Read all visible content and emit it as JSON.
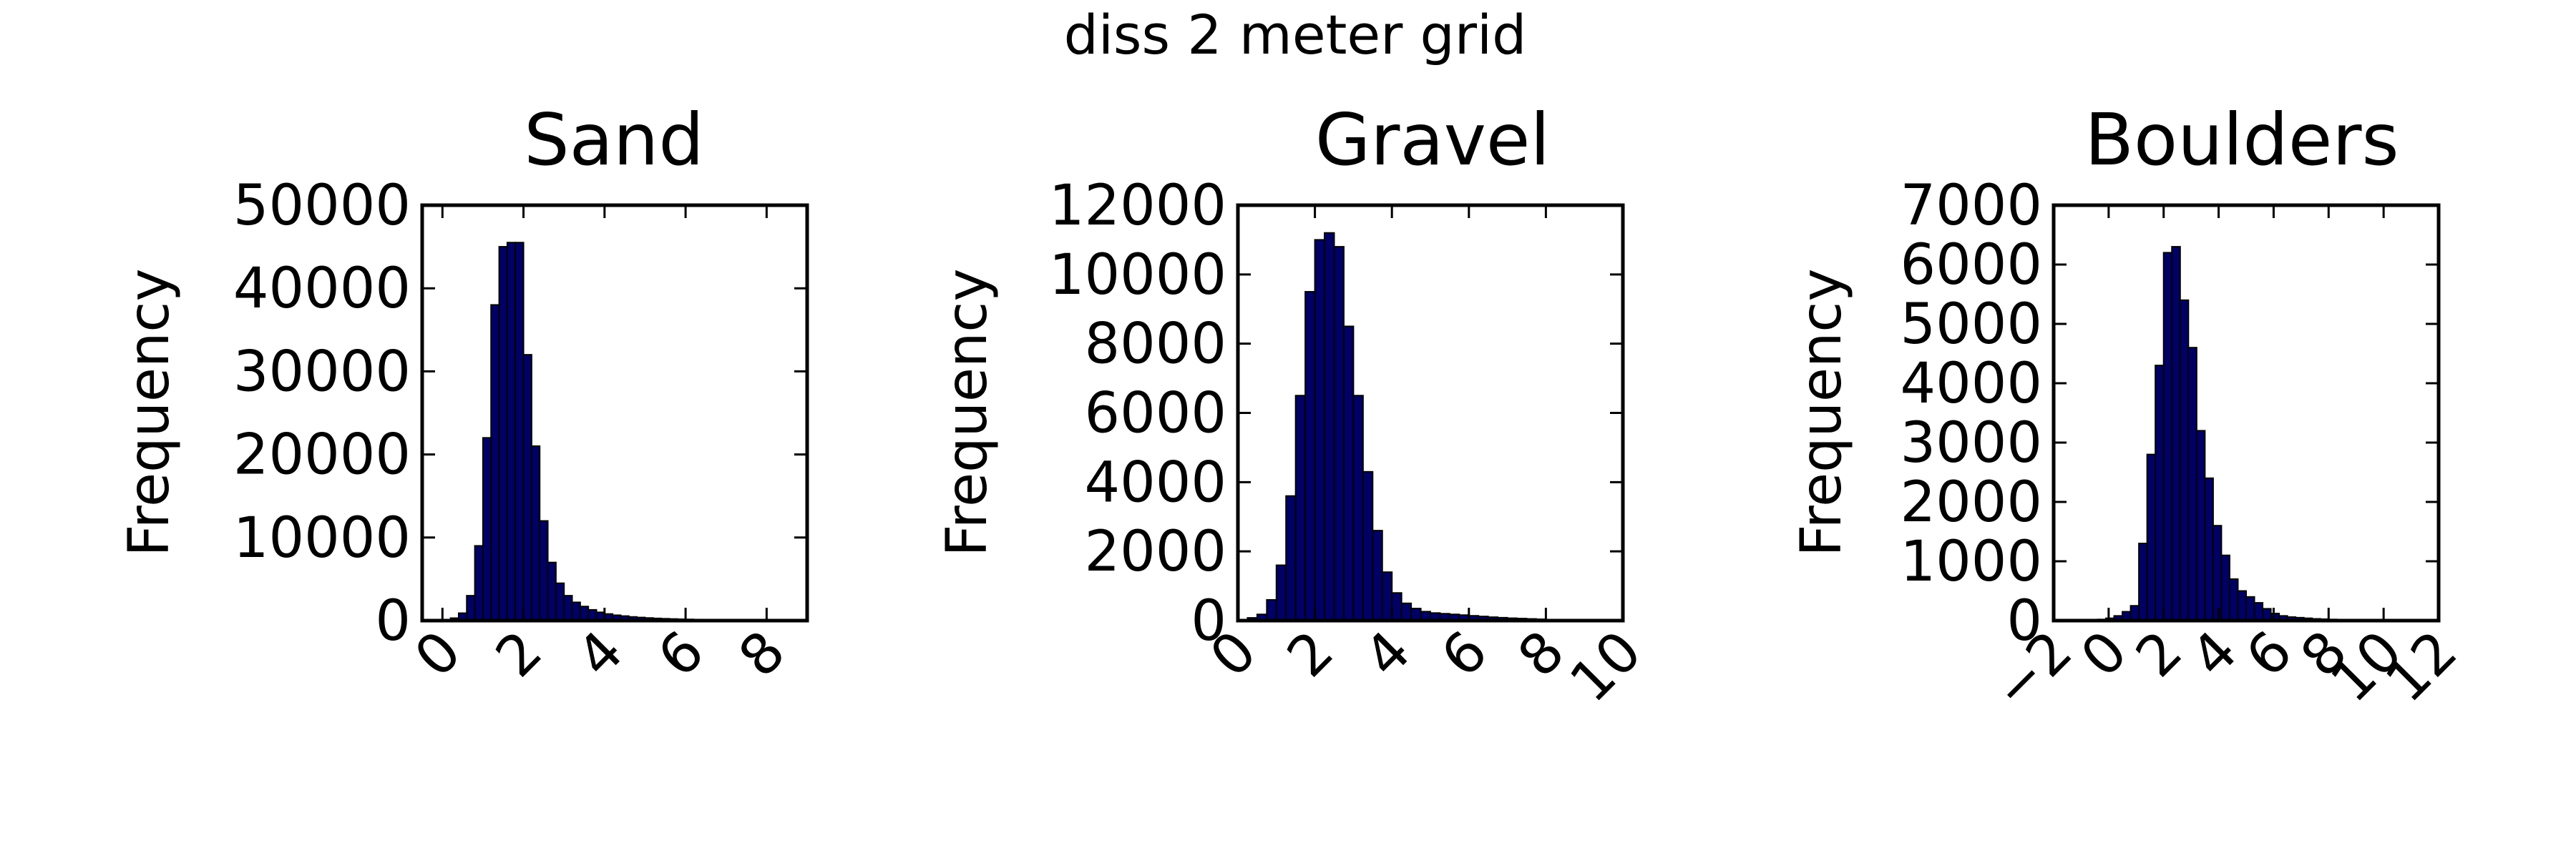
{
  "figure": {
    "suptitle": "diss 2 meter grid"
  },
  "colors": {
    "bar_fill": "#000066",
    "bar_edge": "#000000",
    "axes": "#000000",
    "background": "#ffffff"
  },
  "chart_data": [
    {
      "type": "bar",
      "title": "Sand",
      "xlabel": "",
      "ylabel": "Frequency",
      "xlim": [
        -0.5,
        9
      ],
      "ylim": [
        0,
        50000
      ],
      "xticks": [
        0,
        2,
        4,
        6,
        8
      ],
      "yticks": [
        0,
        10000,
        20000,
        30000,
        40000,
        50000
      ],
      "bin_width": 0.2,
      "bin_start": 0.0,
      "values": [
        80,
        300,
        900,
        3000,
        9000,
        22000,
        38000,
        45000,
        45500,
        45500,
        32000,
        21000,
        12000,
        7000,
        4500,
        3000,
        2200,
        1700,
        1300,
        1000,
        800,
        650,
        550,
        450,
        380,
        320,
        270,
        230,
        200,
        170,
        150,
        130,
        110,
        95,
        80,
        70,
        60,
        50,
        40,
        30
      ]
    },
    {
      "type": "bar",
      "title": "Gravel",
      "xlabel": "",
      "ylabel": "Frequency",
      "xlim": [
        0,
        10
      ],
      "ylim": [
        0,
        12000
      ],
      "xticks": [
        0,
        2,
        4,
        6,
        8,
        10
      ],
      "yticks": [
        0,
        2000,
        4000,
        6000,
        8000,
        10000,
        12000
      ],
      "bin_width": 0.25,
      "bin_start": 0.25,
      "values": [
        80,
        180,
        600,
        1600,
        3600,
        6500,
        9500,
        11000,
        11200,
        10800,
        8500,
        6500,
        4300,
        2600,
        1400,
        800,
        500,
        350,
        260,
        220,
        200,
        180,
        160,
        140,
        120,
        100,
        85,
        70,
        60,
        50,
        40,
        30,
        25,
        20,
        15,
        10,
        8
      ]
    },
    {
      "type": "bar",
      "title": "Boulders",
      "xlabel": "",
      "ylabel": "Frequency",
      "xlim": [
        -2,
        12
      ],
      "ylim": [
        0,
        7000
      ],
      "xticks": [
        -2,
        0,
        2,
        4,
        6,
        8,
        10,
        12
      ],
      "xticklabels": [
        "−2",
        "0",
        "2",
        "4",
        "6",
        "8",
        "10",
        "12"
      ],
      "yticks": [
        0,
        1000,
        2000,
        3000,
        4000,
        5000,
        6000,
        7000
      ],
      "bin_width": 0.3,
      "bin_start": -0.4,
      "values": [
        20,
        40,
        80,
        150,
        250,
        1300,
        2800,
        4300,
        6200,
        6300,
        5400,
        4600,
        3200,
        2400,
        1600,
        1100,
        700,
        500,
        400,
        300,
        200,
        120,
        80,
        60,
        50,
        40,
        30,
        25,
        20,
        15,
        12,
        10,
        8,
        6,
        5,
        4,
        3,
        2
      ]
    }
  ]
}
